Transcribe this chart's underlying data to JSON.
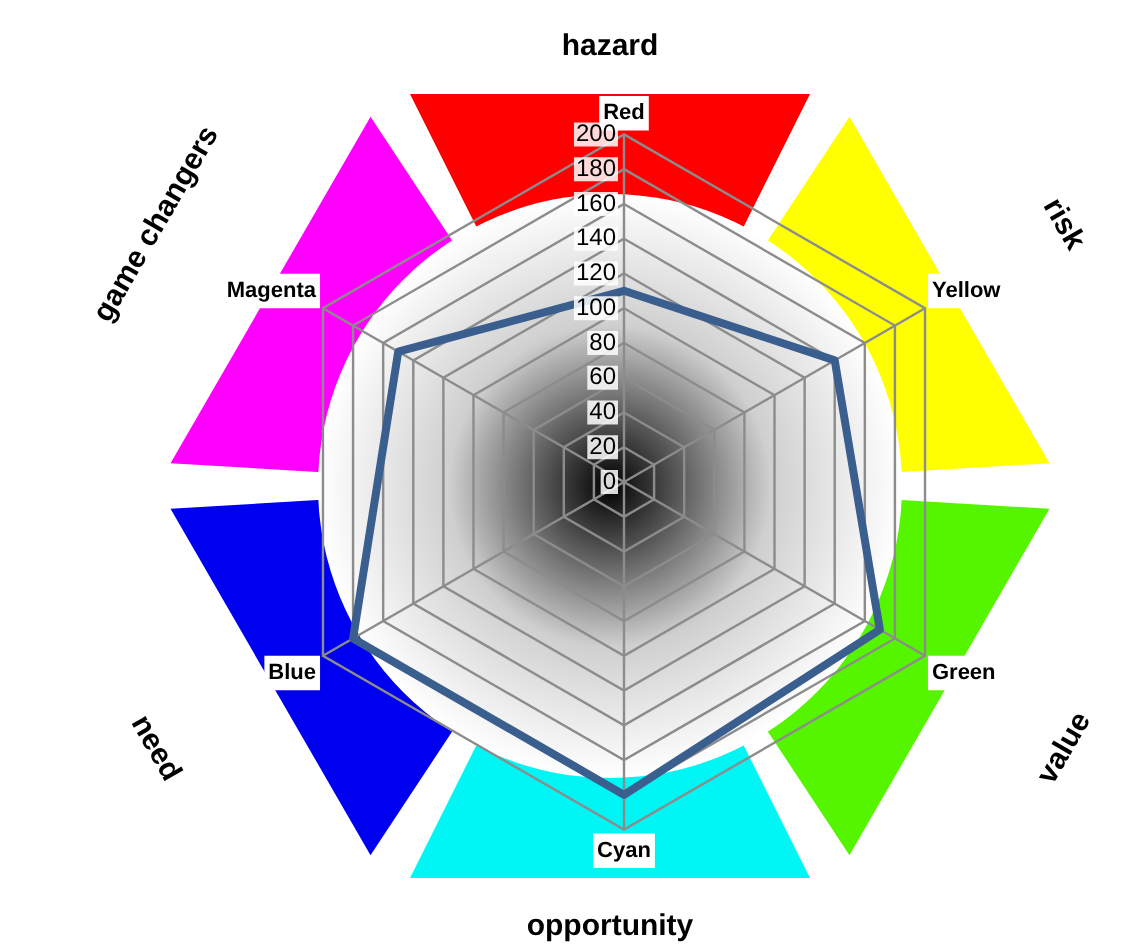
{
  "chart_data": {
    "type": "radar",
    "categories": [
      "Red",
      "Yellow",
      "Green",
      "Cyan",
      "Blue",
      "Magenta"
    ],
    "series": [
      {
        "color": "#3a5f8f",
        "values": [
          110,
          140,
          170,
          180,
          180,
          150
        ]
      }
    ],
    "ylim": [
      0,
      200
    ],
    "yticks": [
      0,
      20,
      40,
      60,
      80,
      100,
      120,
      140,
      160,
      180,
      200
    ],
    "grid": true,
    "legend": false,
    "marker": "none",
    "line_style": "solid",
    "annotations": [
      "hazard",
      "risk",
      "value",
      "opportunity",
      "need",
      "game changers"
    ]
  }
}
